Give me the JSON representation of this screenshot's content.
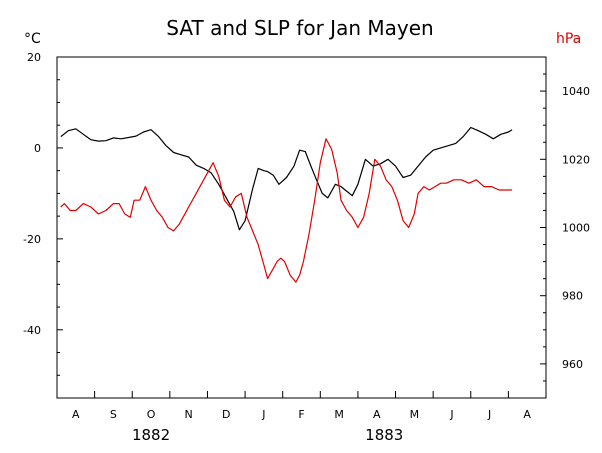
{
  "chart_data": {
    "type": "line",
    "title": "SAT and SLP for Jan Mayen",
    "left_unit": "°C",
    "right_unit": "hPa",
    "colors": {
      "sat": "#000000",
      "slp": "#e00000",
      "right_unit": "#e00000",
      "axes": "#000000"
    },
    "xlim": [
      0,
      13
    ],
    "month_ticks": [
      0.5,
      1.5,
      2.5,
      3.5,
      4.5,
      5.5,
      6.5,
      7.5,
      8.5,
      9.5,
      10.5,
      11.5,
      12.5
    ],
    "month_labels": [
      "A",
      "S",
      "O",
      "N",
      "D",
      "J",
      "F",
      "M",
      "A",
      "M",
      "J",
      "J",
      "A"
    ],
    "year_labels": [
      {
        "text": "1882",
        "x": 2.5
      },
      {
        "text": "1883",
        "x": 8.7
      }
    ],
    "left_axis": {
      "ylim": [
        -55,
        20
      ],
      "ticks": [
        20,
        0,
        -20,
        -40
      ],
      "tick_labels": [
        "20",
        "0",
        "-20",
        "-40"
      ]
    },
    "right_axis": {
      "ylim": [
        950,
        1050
      ],
      "ticks": [
        1040,
        1020,
        1000,
        980,
        960
      ],
      "tick_labels": [
        "1040",
        "1020",
        "1000",
        "980",
        "960"
      ]
    },
    "series": [
      {
        "key": "sat",
        "axis": "left",
        "x": [
          0.1,
          0.3,
          0.5,
          0.7,
          0.9,
          1.1,
          1.3,
          1.5,
          1.7,
          1.9,
          2.1,
          2.3,
          2.5,
          2.7,
          2.9,
          3.1,
          3.3,
          3.5,
          3.7,
          3.9,
          4.1,
          4.3,
          4.5,
          4.7,
          4.85,
          5.0,
          5.2,
          5.35,
          5.5,
          5.6,
          5.75,
          5.9,
          6.1,
          6.3,
          6.45,
          6.6,
          6.75,
          6.9,
          7.05,
          7.2,
          7.4,
          7.55,
          7.7,
          7.85,
          8.0,
          8.2,
          8.4,
          8.6,
          8.8,
          9.0,
          9.2,
          9.4,
          9.6,
          9.8,
          10.0,
          10.2,
          10.4,
          10.6,
          10.8,
          11.0,
          11.2,
          11.4,
          11.6,
          11.8,
          12.0,
          12.1
        ],
        "y": [
          2.5,
          3.8,
          4.2,
          3.0,
          1.8,
          1.5,
          1.6,
          2.2,
          2.0,
          2.3,
          2.6,
          3.5,
          4.0,
          2.5,
          0.5,
          -1.0,
          -1.5,
          -2.0,
          -3.8,
          -4.5,
          -5.5,
          -8.0,
          -11.0,
          -14.0,
          -18.0,
          -16.0,
          -9.0,
          -4.5,
          -5.0,
          -5.2,
          -6.0,
          -8.0,
          -6.5,
          -4.0,
          -0.5,
          -0.8,
          -4.0,
          -7.0,
          -10.0,
          -11.0,
          -8.0,
          -8.5,
          -9.5,
          -10.5,
          -8.0,
          -2.5,
          -4.0,
          -3.5,
          -2.5,
          -4.0,
          -6.5,
          -6.0,
          -4.0,
          -2.0,
          -0.5,
          0.0,
          0.5,
          1.0,
          2.5,
          4.5,
          3.8,
          3.0,
          2.0,
          3.0,
          3.5,
          4.0
        ]
      },
      {
        "key": "slp",
        "axis": "right",
        "x": [
          0.1,
          0.2,
          0.35,
          0.5,
          0.7,
          0.9,
          1.1,
          1.3,
          1.5,
          1.65,
          1.8,
          1.95,
          2.05,
          2.2,
          2.35,
          2.5,
          2.65,
          2.8,
          2.95,
          3.1,
          3.25,
          3.4,
          3.55,
          3.7,
          3.85,
          4.0,
          4.15,
          4.3,
          4.45,
          4.6,
          4.75,
          4.9,
          5.05,
          5.2,
          5.35,
          5.5,
          5.6,
          5.75,
          5.85,
          5.95,
          6.05,
          6.2,
          6.35,
          6.45,
          6.55,
          6.7,
          6.85,
          7.0,
          7.15,
          7.3,
          7.45,
          7.55,
          7.7,
          7.85,
          8.0,
          8.15,
          8.3,
          8.45,
          8.6,
          8.75,
          8.9,
          9.05,
          9.2,
          9.35,
          9.5,
          9.6,
          9.75,
          9.9,
          10.05,
          10.2,
          10.35,
          10.55,
          10.75,
          10.95,
          11.15,
          11.35,
          11.55,
          11.75,
          11.95,
          12.1
        ],
        "y": [
          1006,
          1007,
          1005,
          1005,
          1007,
          1006,
          1004,
          1005,
          1007,
          1007,
          1004,
          1003,
          1008,
          1008,
          1012,
          1008,
          1005,
          1003,
          1000,
          999,
          1001,
          1004,
          1007,
          1010,
          1013,
          1016,
          1019,
          1015,
          1008,
          1006,
          1009,
          1010,
          1003,
          999,
          995,
          989,
          985,
          988,
          990,
          991,
          990,
          986,
          984,
          986,
          990,
          998,
          1008,
          1019,
          1026,
          1023,
          1016,
          1008,
          1005,
          1003,
          1000,
          1003,
          1010,
          1020,
          1018,
          1014,
          1012,
          1008,
          1002,
          1000,
          1004,
          1010,
          1012,
          1011,
          1012,
          1013,
          1013,
          1014,
          1014,
          1013,
          1014,
          1012,
          1012,
          1011,
          1011,
          1011
        ]
      }
    ]
  }
}
